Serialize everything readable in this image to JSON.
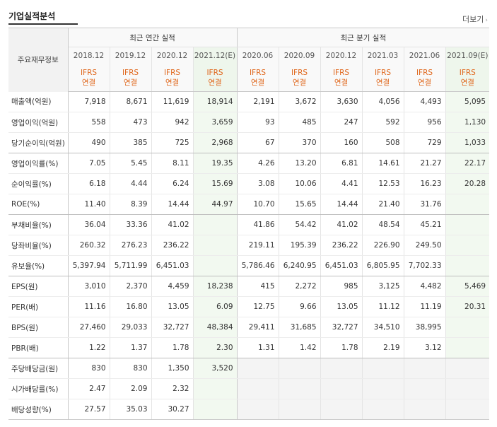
{
  "header": {
    "title": "기업실적분석",
    "more_label": "더보기"
  },
  "table": {
    "row_header_label": "주요재무정보",
    "annual_group_label": "최근 연간 실적",
    "quarter_group_label": "최근 분기 실적",
    "periods": [
      "2018.12",
      "2019.12",
      "2020.12",
      "2021.12(E)",
      "2020.06",
      "2020.09",
      "2020.12",
      "2021.03",
      "2021.06",
      "2021.09(E)"
    ],
    "ifrs_line1": "IFRS",
    "ifrs_line2": "연결",
    "rows": [
      {
        "label": "매출액(억원)",
        "values": [
          "7,918",
          "8,671",
          "11,619",
          "18,914",
          "2,191",
          "3,672",
          "3,630",
          "4,056",
          "4,493",
          "5,095"
        ]
      },
      {
        "label": "영업이익(억원)",
        "values": [
          "558",
          "473",
          "942",
          "3,659",
          "93",
          "485",
          "247",
          "592",
          "956",
          "1,130"
        ]
      },
      {
        "label": "당기순이익(억원)",
        "values": [
          "490",
          "385",
          "725",
          "2,968",
          "67",
          "370",
          "160",
          "508",
          "729",
          "1,033"
        ]
      },
      {
        "label": "영업이익률(%)",
        "values": [
          "7.05",
          "5.45",
          "8.11",
          "19.35",
          "4.26",
          "13.20",
          "6.81",
          "14.61",
          "21.27",
          "22.17"
        ]
      },
      {
        "label": "순이익률(%)",
        "values": [
          "6.18",
          "4.44",
          "6.24",
          "15.69",
          "3.08",
          "10.06",
          "4.41",
          "12.53",
          "16.23",
          "20.28"
        ]
      },
      {
        "label": "ROE(%)",
        "values": [
          "11.40",
          "8.39",
          "14.44",
          "44.97",
          "10.70",
          "15.65",
          "14.44",
          "21.40",
          "31.76",
          ""
        ]
      },
      {
        "label": "부채비율(%)",
        "values": [
          "36.04",
          "33.36",
          "41.02",
          "",
          "41.86",
          "54.42",
          "41.02",
          "48.54",
          "45.21",
          ""
        ]
      },
      {
        "label": "당좌비율(%)",
        "values": [
          "260.32",
          "276.23",
          "236.22",
          "",
          "219.11",
          "195.39",
          "236.22",
          "226.90",
          "249.50",
          ""
        ]
      },
      {
        "label": "유보율(%)",
        "values": [
          "5,397.94",
          "5,711.99",
          "6,451.03",
          "",
          "5,786.46",
          "6,240.95",
          "6,451.03",
          "6,805.95",
          "7,702.33",
          ""
        ]
      },
      {
        "label": "EPS(원)",
        "values": [
          "3,010",
          "2,370",
          "4,459",
          "18,238",
          "415",
          "2,272",
          "985",
          "3,125",
          "4,482",
          "5,469"
        ]
      },
      {
        "label": "PER(배)",
        "values": [
          "11.16",
          "16.80",
          "13.05",
          "6.09",
          "12.75",
          "9.66",
          "13.05",
          "11.12",
          "11.19",
          "20.31"
        ]
      },
      {
        "label": "BPS(원)",
        "values": [
          "27,460",
          "29,033",
          "32,727",
          "48,384",
          "29,411",
          "31,685",
          "32,727",
          "34,510",
          "38,995",
          ""
        ]
      },
      {
        "label": "PBR(배)",
        "values": [
          "1.22",
          "1.37",
          "1.78",
          "2.30",
          "1.31",
          "1.42",
          "1.78",
          "2.19",
          "3.12",
          ""
        ]
      },
      {
        "label": "주당배당금(원)",
        "values": [
          "830",
          "830",
          "1,350",
          "3,520",
          "",
          "",
          "",
          "",
          "",
          ""
        ]
      },
      {
        "label": "시가배당률(%)",
        "values": [
          "2.47",
          "2.09",
          "2.32",
          "",
          "",
          "",
          "",
          "",
          "",
          ""
        ]
      },
      {
        "label": "배당성향(%)",
        "values": [
          "27.57",
          "35.03",
          "30.27",
          "",
          "",
          "",
          "",
          "",
          "",
          ""
        ]
      }
    ]
  },
  "colors": {
    "ifrs_text": "#e0671c",
    "estimate_bg": "#f2f9f0",
    "header_bg": "#f9f9f9",
    "empty_bg": "#f4f4f4"
  }
}
